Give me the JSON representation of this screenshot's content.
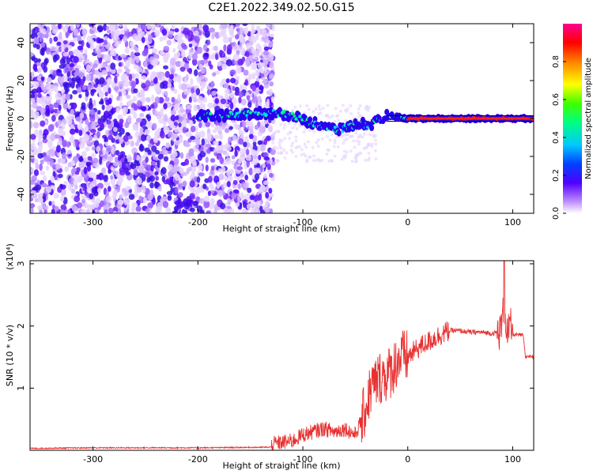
{
  "chart_data": [
    {
      "type": "heatmap",
      "title": "C2E1.2022.349.02.50.G15",
      "xlabel": "Height of straight line (km)",
      "ylabel": "Frequency (Hz)",
      "xlim": [
        -360,
        120
      ],
      "ylim": [
        -50,
        50
      ],
      "x_ticks": [
        -300,
        -200,
        -100,
        0,
        100
      ],
      "y_ticks": [
        -40,
        -20,
        0,
        20,
        40
      ],
      "colorbar": {
        "label": "Normalized spectral amplitude",
        "range": [
          0.0,
          1.0
        ],
        "ticks": [
          0.0,
          0.2,
          0.4,
          0.6,
          0.8
        ],
        "colors": [
          "#ffffff",
          "#b070ff",
          "#4000ff",
          "#0060ff",
          "#00e0ff",
          "#00ff60",
          "#ffff00",
          "#ff8000",
          "#ff0000",
          "#ff0090"
        ]
      },
      "grid": false,
      "track": {
        "x": [
          -200,
          -180,
          -160,
          -140,
          -120,
          -105,
          -95,
          -85,
          -75,
          -65,
          -55,
          -45,
          -38,
          -30,
          -20,
          -10,
          0,
          20,
          60,
          90,
          120
        ],
        "y": [
          1.5,
          1.5,
          2,
          3,
          2.5,
          1,
          -2,
          -3,
          -5,
          -6,
          -4,
          -2,
          -4,
          -2,
          1.5,
          1,
          0,
          0,
          0,
          0,
          0
        ]
      }
    },
    {
      "type": "line",
      "title": "",
      "xlabel": "Height of straight line (km)",
      "ylabel": "SNR (10 * v/v)",
      "y_multiplier": "(x10⁴)",
      "xlim": [
        -360,
        120
      ],
      "ylim": [
        0,
        3.05
      ],
      "x_ticks": [
        -300,
        -200,
        -100,
        0,
        100
      ],
      "y_ticks": [
        1,
        2,
        3
      ],
      "color": "#e83030",
      "grid": false,
      "x": [
        -360,
        -300,
        -200,
        -130,
        -110,
        -100,
        -90,
        -80,
        -70,
        -60,
        -50,
        -45,
        -40,
        -35,
        -30,
        -25,
        -20,
        -15,
        -10,
        -5,
        0,
        10,
        20,
        30,
        40,
        50,
        60,
        70,
        80,
        88,
        92,
        95,
        98,
        100,
        110,
        112,
        115,
        120
      ],
      "y": [
        0.03,
        0.04,
        0.04,
        0.05,
        0.1,
        0.2,
        0.25,
        0.3,
        0.25,
        0.3,
        0.2,
        0.4,
        0.7,
        1.0,
        1.1,
        1.2,
        1.2,
        1.3,
        1.45,
        1.5,
        1.5,
        1.65,
        1.75,
        1.85,
        1.93,
        1.92,
        1.9,
        1.9,
        1.88,
        1.9,
        2.3,
        1.85,
        2.0,
        1.86,
        1.85,
        1.5,
        1.52,
        1.5
      ]
    }
  ]
}
